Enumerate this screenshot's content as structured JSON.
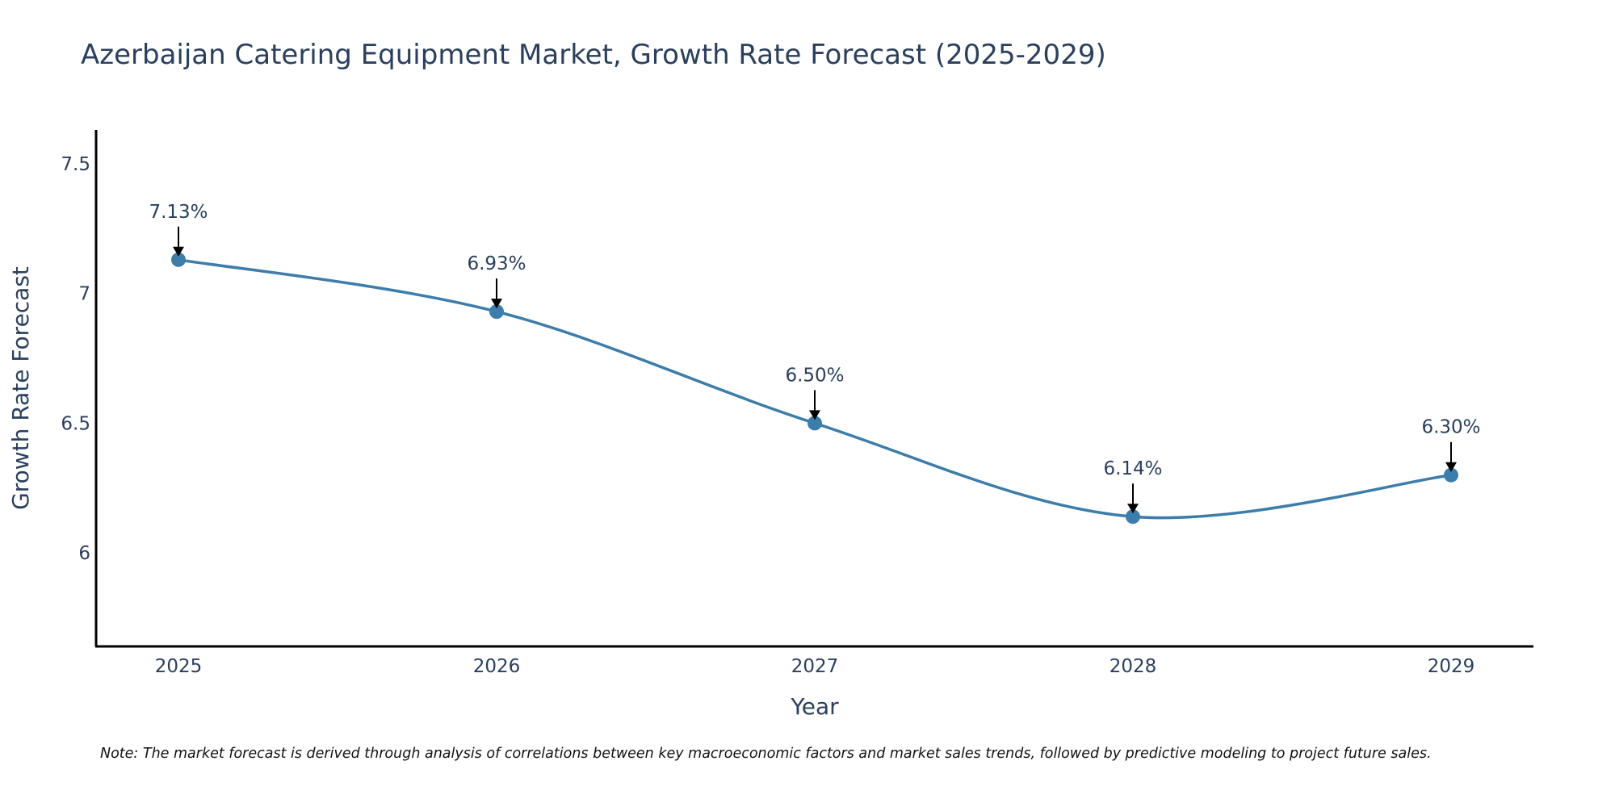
{
  "chart_data": {
    "type": "line",
    "title": "Azerbaijan Catering Equipment Market, Growth Rate Forecast (2025-2029)",
    "xlabel": "Year",
    "ylabel": "Growth Rate Forecast",
    "categories": [
      "2025",
      "2026",
      "2027",
      "2028",
      "2029"
    ],
    "values": [
      7.13,
      6.93,
      6.5,
      6.14,
      6.3
    ],
    "data_labels": [
      "7.13%",
      "6.93%",
      "6.50%",
      "6.14%",
      "6.30%"
    ],
    "y_ticks": [
      6,
      6.5,
      7,
      7.5
    ],
    "y_tick_labels": [
      "6",
      "6.5",
      "7",
      "7.5"
    ],
    "ylim": [
      5.64,
      7.63
    ],
    "grid": false,
    "line_shape": "spline",
    "series_color": "#3b7dab",
    "note": "Note: The market forecast is derived through analysis of correlations between key macroeconomic factors and market sales trends, followed by predictive modeling to project future sales."
  }
}
